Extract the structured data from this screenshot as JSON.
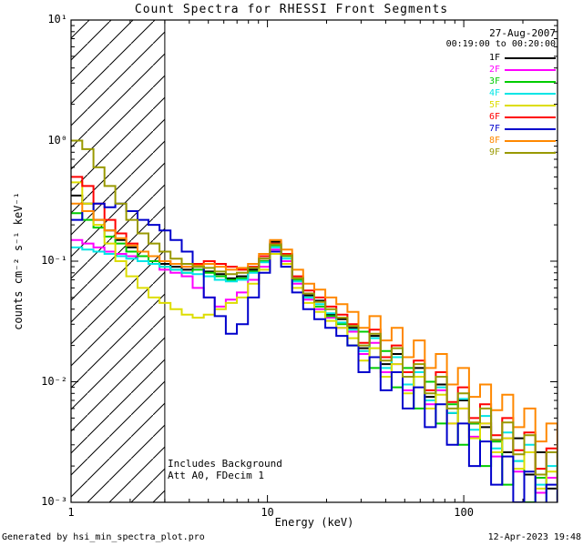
{
  "header": {
    "date": "27-Aug-2007",
    "time_range": "00:19:00 to 00:20:00"
  },
  "notes": {
    "line1": "Includes Background",
    "line2": "Att A0, FDecim 1"
  },
  "footer": {
    "left": "Generated by hsi_min_spectra_plot.pro",
    "right": "12-Apr-2023 19:48"
  },
  "chart_data": {
    "type": "line",
    "mode": "steps",
    "title": "Count Spectra for RHESSI Front Segments",
    "xlabel": "Energy (keV)",
    "ylabel": "counts cm⁻² s⁻¹ keV⁻¹",
    "xscale": "log",
    "yscale": "log",
    "xlim": [
      1,
      300
    ],
    "ylim": [
      0.001,
      10
    ],
    "grid": false,
    "legend_position": "top-right",
    "x_ticks": [
      {
        "value": 1,
        "label": "1"
      },
      {
        "value": 10,
        "label": "10"
      },
      {
        "value": 100,
        "label": "100"
      }
    ],
    "y_ticks": [
      {
        "value": 10,
        "label": "10¹"
      },
      {
        "value": 1,
        "label": "10⁰"
      },
      {
        "value": 0.1,
        "label": "10⁻¹"
      },
      {
        "value": 0.01,
        "label": "10⁻²"
      },
      {
        "value": 0.001,
        "label": "10⁻³"
      }
    ],
    "hatched_region": {
      "x_min": 1,
      "x_max": 3
    },
    "energies": [
      1.0,
      1.14,
      1.3,
      1.48,
      1.68,
      1.91,
      2.18,
      2.48,
      2.82,
      3.21,
      3.66,
      4.16,
      4.74,
      5.39,
      6.14,
      6.99,
      7.96,
      9.06,
      10.31,
      11.74,
      13.36,
      15.21,
      17.32,
      19.71,
      22.44,
      25.54,
      29.08,
      33.1,
      37.68,
      42.9,
      48.83,
      55.59,
      63.28,
      72.04,
      82.01,
      93.36,
      106.3,
      121.0,
      137.7,
      156.8,
      178.5,
      203.2,
      231.3,
      263.3,
      299.8
    ],
    "series": [
      {
        "name": "1F",
        "color": "#000000",
        "values": [
          0.35,
          0.3,
          0.22,
          0.18,
          0.15,
          0.13,
          0.12,
          0.1,
          0.095,
          0.09,
          0.085,
          0.09,
          0.082,
          0.078,
          0.072,
          0.075,
          0.085,
          0.105,
          0.145,
          0.115,
          0.072,
          0.052,
          0.047,
          0.036,
          0.033,
          0.028,
          0.019,
          0.024,
          0.014,
          0.017,
          0.0095,
          0.013,
          0.0075,
          0.0095,
          0.0055,
          0.007,
          0.0045,
          0.0042,
          0.0032,
          0.0026,
          0.0034,
          0.0017,
          0.0026,
          0.0013,
          0.0019
        ]
      },
      {
        "name": "2F",
        "color": "#FF00FF",
        "values": [
          0.15,
          0.14,
          0.13,
          0.12,
          0.115,
          0.11,
          0.1,
          0.095,
          0.085,
          0.08,
          0.075,
          0.06,
          0.05,
          0.042,
          0.048,
          0.055,
          0.07,
          0.09,
          0.125,
          0.1,
          0.065,
          0.048,
          0.04,
          0.034,
          0.028,
          0.026,
          0.017,
          0.021,
          0.012,
          0.014,
          0.0085,
          0.011,
          0.0065,
          0.0085,
          0.0045,
          0.006,
          0.0035,
          0.0045,
          0.0024,
          0.0034,
          0.0018,
          0.0026,
          0.0012,
          0.0016,
          0.0008
        ]
      },
      {
        "name": "3F",
        "color": "#00CC00",
        "values": [
          0.25,
          0.22,
          0.19,
          0.16,
          0.14,
          0.12,
          0.11,
          0.1,
          0.09,
          0.085,
          0.08,
          0.085,
          0.08,
          0.075,
          0.07,
          0.072,
          0.082,
          0.1,
          0.135,
          0.11,
          0.07,
          0.05,
          0.042,
          0.035,
          0.03,
          0.02,
          0.026,
          0.013,
          0.018,
          0.009,
          0.013,
          0.006,
          0.01,
          0.0045,
          0.0065,
          0.003,
          0.0045,
          0.002,
          0.0032,
          0.0014,
          0.0022,
          0.001,
          0.0016,
          0.0008,
          0.0012
        ]
      },
      {
        "name": "4F",
        "color": "#00E5E5",
        "values": [
          0.13,
          0.125,
          0.12,
          0.115,
          0.11,
          0.105,
          0.1,
          0.095,
          0.09,
          0.085,
          0.08,
          0.078,
          0.075,
          0.07,
          0.068,
          0.07,
          0.08,
          0.098,
          0.13,
          0.105,
          0.068,
          0.05,
          0.044,
          0.037,
          0.031,
          0.027,
          0.018,
          0.023,
          0.013,
          0.016,
          0.0095,
          0.012,
          0.007,
          0.009,
          0.0055,
          0.0072,
          0.004,
          0.0052,
          0.0028,
          0.0038,
          0.0022,
          0.003,
          0.0014,
          0.002,
          0.0011
        ]
      },
      {
        "name": "5F",
        "color": "#DDDD00",
        "values": [
          0.45,
          0.3,
          0.2,
          0.14,
          0.1,
          0.075,
          0.06,
          0.05,
          0.045,
          0.04,
          0.036,
          0.034,
          0.036,
          0.04,
          0.045,
          0.05,
          0.065,
          0.085,
          0.115,
          0.095,
          0.06,
          0.045,
          0.038,
          0.032,
          0.028,
          0.023,
          0.015,
          0.019,
          0.011,
          0.014,
          0.008,
          0.011,
          0.006,
          0.0078,
          0.0045,
          0.006,
          0.0034,
          0.0045,
          0.0026,
          0.0034,
          0.0019,
          0.0026,
          0.0013,
          0.0018,
          0.001
        ]
      },
      {
        "name": "6F",
        "color": "#FF0000",
        "values": [
          0.5,
          0.42,
          0.3,
          0.22,
          0.17,
          0.14,
          0.12,
          0.11,
          0.1,
          0.095,
          0.09,
          0.095,
          0.1,
          0.095,
          0.09,
          0.085,
          0.09,
          0.11,
          0.14,
          0.115,
          0.075,
          0.057,
          0.05,
          0.042,
          0.036,
          0.03,
          0.021,
          0.027,
          0.016,
          0.02,
          0.012,
          0.015,
          0.0085,
          0.012,
          0.0068,
          0.009,
          0.005,
          0.0065,
          0.0036,
          0.005,
          0.0027,
          0.0038,
          0.0019,
          0.0028,
          0.0015
        ]
      },
      {
        "name": "7F",
        "color": "#0000CC",
        "values": [
          0.22,
          0.26,
          0.3,
          0.28,
          0.3,
          0.26,
          0.22,
          0.2,
          0.18,
          0.15,
          0.12,
          0.09,
          0.05,
          0.035,
          0.025,
          0.03,
          0.05,
          0.08,
          0.12,
          0.09,
          0.055,
          0.04,
          0.033,
          0.028,
          0.024,
          0.02,
          0.012,
          0.016,
          0.0085,
          0.012,
          0.006,
          0.009,
          0.0042,
          0.0065,
          0.003,
          0.0045,
          0.002,
          0.0032,
          0.0014,
          0.0024,
          0.001,
          0.0018,
          0.0008,
          0.0014,
          0.0009
        ]
      },
      {
        "name": "8F",
        "color": "#FF8800",
        "values": [
          0.3,
          0.26,
          0.22,
          0.18,
          0.155,
          0.135,
          0.12,
          0.11,
          0.1,
          0.095,
          0.09,
          0.092,
          0.095,
          0.09,
          0.085,
          0.088,
          0.095,
          0.115,
          0.15,
          0.125,
          0.085,
          0.065,
          0.058,
          0.05,
          0.044,
          0.038,
          0.028,
          0.035,
          0.022,
          0.028,
          0.016,
          0.022,
          0.013,
          0.017,
          0.0095,
          0.013,
          0.0075,
          0.0095,
          0.0058,
          0.0078,
          0.0042,
          0.006,
          0.0032,
          0.0045,
          0.0024
        ]
      },
      {
        "name": "9F",
        "color": "#999900",
        "values": [
          1.0,
          0.85,
          0.6,
          0.42,
          0.3,
          0.22,
          0.17,
          0.14,
          0.12,
          0.105,
          0.095,
          0.09,
          0.088,
          0.082,
          0.078,
          0.08,
          0.088,
          0.105,
          0.138,
          0.112,
          0.072,
          0.054,
          0.046,
          0.04,
          0.034,
          0.029,
          0.02,
          0.025,
          0.015,
          0.019,
          0.011,
          0.014,
          0.008,
          0.011,
          0.006,
          0.008,
          0.0046,
          0.006,
          0.0033,
          0.0046,
          0.0025,
          0.0036,
          0.0017,
          0.0026,
          0.0013
        ]
      }
    ]
  }
}
